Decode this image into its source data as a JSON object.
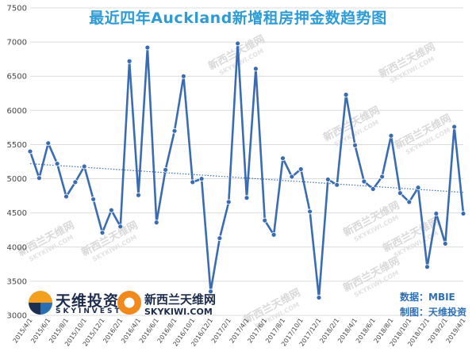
{
  "title": "最近四年Auckland新增租房押金数趋势图",
  "source": {
    "data_label": "数据：MBIE",
    "made_by_label": "制图：天维投资"
  },
  "logos": {
    "logo1_name": "天维投资",
    "logo1_sub": "SKYINVEST",
    "logo2_name": "新西兰天维网",
    "logo2_url": "SKYKIWI.COM"
  },
  "watermark": {
    "cn": "新西兰天维网",
    "en": "SKYKIWI.COM"
  },
  "colors": {
    "line": "#3a6cb3",
    "trend": "#3a6cb3",
    "title": "#2e9bd6"
  },
  "chart_data": {
    "type": "line",
    "ylim": [
      3000,
      7500
    ],
    "yticks": [
      3000,
      3500,
      4000,
      4500,
      5000,
      5500,
      6000,
      6500,
      7000,
      7500
    ],
    "grid": "horizontal",
    "xtick_labels": [
      "2015/4/1",
      "2015/6/1",
      "2015/8/1",
      "2015/10/1",
      "2015/12/1",
      "2016/2/1",
      "2016/4/1",
      "2016/6/1",
      "2016/8/1",
      "2016/10/1",
      "2016/12/1",
      "2017/2/1",
      "2017/4/1",
      "2017/6/1",
      "2017/8/1",
      "2017/10/1",
      "2017/12/1",
      "2018/2/1",
      "2018/4/1",
      "2018/6/1",
      "2018/8/1",
      "2018/10/1",
      "2018/12/1",
      "2019/2/1",
      "2019/4/1"
    ],
    "series": [
      {
        "values": [
          5400,
          5010,
          5520,
          5220,
          4740,
          4950,
          5180,
          4700,
          4210,
          4540,
          4300,
          6720,
          4760,
          6920,
          4360,
          5130,
          5700,
          6500,
          4950,
          5000,
          3350,
          4130,
          4660,
          6980,
          4720,
          6610,
          4390,
          4180,
          5300,
          5030,
          5140,
          4520,
          3260,
          4990,
          4910,
          6230,
          5490,
          4960,
          4850,
          5030,
          5630,
          4790,
          4660,
          4870,
          3710,
          4490,
          4050,
          5760,
          4490
        ]
      }
    ],
    "trendline": {
      "style": "dotted",
      "start": 5220,
      "end": 4800
    }
  }
}
